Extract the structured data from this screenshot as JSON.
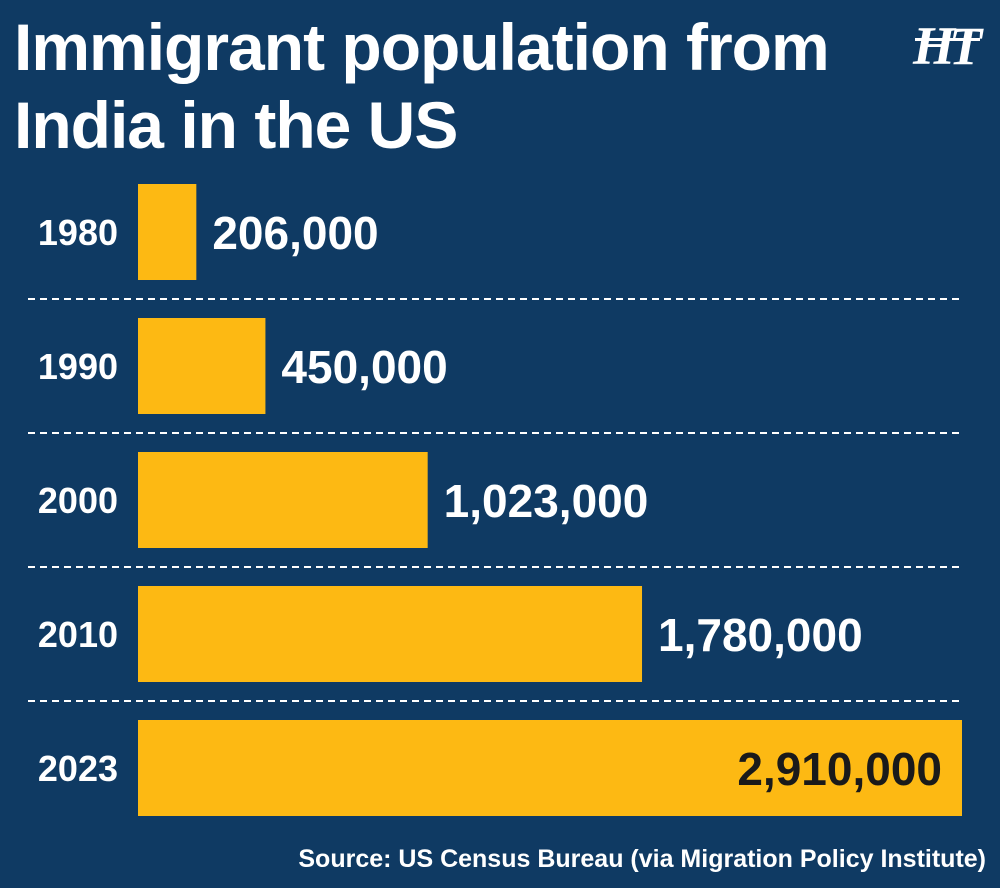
{
  "chart_data": {
    "type": "bar",
    "orientation": "horizontal",
    "title": "Immigrant population from India in the US",
    "categories": [
      "1980",
      "1990",
      "2000",
      "2010",
      "2023"
    ],
    "values": [
      206000,
      450000,
      1023000,
      1780000,
      2910000
    ],
    "value_labels": [
      "206,000",
      "450,000",
      "1,023,000",
      "1,780,000",
      "2,910,000"
    ],
    "xlim": [
      0,
      2910000
    ],
    "grid": false,
    "legend": "none",
    "source": "Source: US Census Bureau (via Migration Policy Institute)"
  },
  "logo": {
    "text": "HT"
  },
  "colors": {
    "background": "#0f3a63",
    "bar": "#fdb913",
    "label_outside": "#ffffff",
    "label_inside": "#1a1a1a",
    "divider": "#ffffff"
  }
}
